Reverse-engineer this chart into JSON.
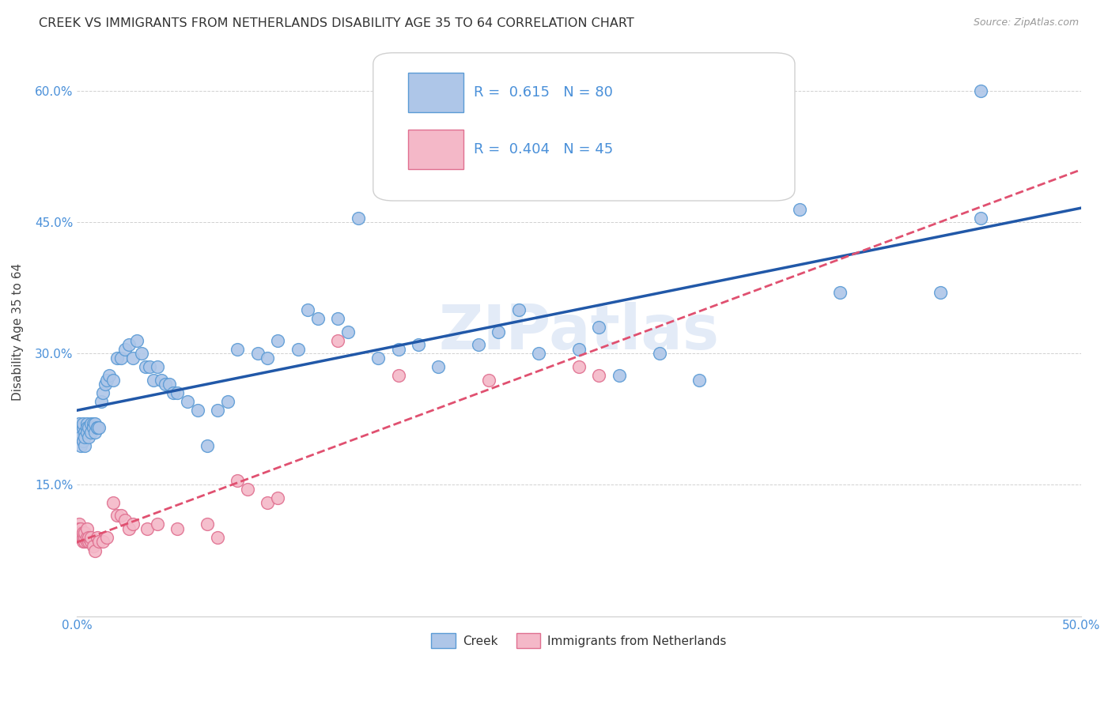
{
  "title": "CREEK VS IMMIGRANTS FROM NETHERLANDS DISABILITY AGE 35 TO 64 CORRELATION CHART",
  "source": "Source: ZipAtlas.com",
  "ylabel": "Disability Age 35 to 64",
  "xlim": [
    0.0,
    0.5
  ],
  "ylim": [
    0.0,
    0.65
  ],
  "xticks": [
    0.0,
    0.1,
    0.2,
    0.3,
    0.4,
    0.5
  ],
  "xticklabels": [
    "0.0%",
    "",
    "",
    "",
    "",
    "50.0%"
  ],
  "yticks": [
    0.15,
    0.3,
    0.45,
    0.6
  ],
  "yticklabels": [
    "15.0%",
    "30.0%",
    "45.0%",
    "60.0%"
  ],
  "creek_color": "#aec6e8",
  "creek_edge_color": "#5b9bd5",
  "netherlands_color": "#f4b8c8",
  "netherlands_edge_color": "#e07090",
  "creek_line_color": "#2158a8",
  "netherlands_line_color": "#e05070",
  "R_creek": 0.615,
  "N_creek": 80,
  "R_netherlands": 0.404,
  "N_netherlands": 45,
  "watermark": "ZIPatlas",
  "creek_x": [
    0.001,
    0.001,
    0.002,
    0.002,
    0.002,
    0.003,
    0.003,
    0.003,
    0.004,
    0.004,
    0.004,
    0.005,
    0.005,
    0.005,
    0.006,
    0.006,
    0.007,
    0.007,
    0.008,
    0.008,
    0.009,
    0.009,
    0.01,
    0.01,
    0.011,
    0.012,
    0.013,
    0.014,
    0.015,
    0.016,
    0.018,
    0.02,
    0.022,
    0.024,
    0.026,
    0.028,
    0.03,
    0.032,
    0.034,
    0.036,
    0.038,
    0.04,
    0.042,
    0.044,
    0.046,
    0.048,
    0.05,
    0.055,
    0.06,
    0.065,
    0.07,
    0.075,
    0.08,
    0.09,
    0.095,
    0.1,
    0.11,
    0.115,
    0.12,
    0.13,
    0.135,
    0.14,
    0.15,
    0.16,
    0.17,
    0.18,
    0.2,
    0.21,
    0.22,
    0.23,
    0.25,
    0.26,
    0.27,
    0.29,
    0.31,
    0.36,
    0.38,
    0.43,
    0.45,
    0.45
  ],
  "creek_y": [
    0.215,
    0.22,
    0.195,
    0.21,
    0.205,
    0.2,
    0.215,
    0.22,
    0.195,
    0.21,
    0.205,
    0.22,
    0.215,
    0.21,
    0.205,
    0.215,
    0.22,
    0.21,
    0.22,
    0.215,
    0.21,
    0.22,
    0.215,
    0.215,
    0.215,
    0.245,
    0.255,
    0.265,
    0.27,
    0.275,
    0.27,
    0.295,
    0.295,
    0.305,
    0.31,
    0.295,
    0.315,
    0.3,
    0.285,
    0.285,
    0.27,
    0.285,
    0.27,
    0.265,
    0.265,
    0.255,
    0.255,
    0.245,
    0.235,
    0.195,
    0.235,
    0.245,
    0.305,
    0.3,
    0.295,
    0.315,
    0.305,
    0.35,
    0.34,
    0.34,
    0.325,
    0.455,
    0.295,
    0.305,
    0.31,
    0.285,
    0.31,
    0.325,
    0.35,
    0.3,
    0.305,
    0.33,
    0.275,
    0.3,
    0.27,
    0.465,
    0.37,
    0.37,
    0.455,
    0.6
  ],
  "netherlands_x": [
    0.001,
    0.001,
    0.001,
    0.002,
    0.002,
    0.002,
    0.003,
    0.003,
    0.003,
    0.004,
    0.004,
    0.004,
    0.005,
    0.005,
    0.005,
    0.006,
    0.006,
    0.007,
    0.007,
    0.008,
    0.009,
    0.01,
    0.011,
    0.013,
    0.015,
    0.018,
    0.02,
    0.022,
    0.024,
    0.026,
    0.028,
    0.035,
    0.04,
    0.05,
    0.065,
    0.07,
    0.08,
    0.085,
    0.095,
    0.1,
    0.13,
    0.16,
    0.205,
    0.25,
    0.26
  ],
  "netherlands_y": [
    0.105,
    0.1,
    0.095,
    0.09,
    0.095,
    0.1,
    0.085,
    0.09,
    0.095,
    0.085,
    0.09,
    0.095,
    0.085,
    0.09,
    0.1,
    0.085,
    0.09,
    0.085,
    0.09,
    0.08,
    0.075,
    0.09,
    0.085,
    0.085,
    0.09,
    0.13,
    0.115,
    0.115,
    0.11,
    0.1,
    0.105,
    0.1,
    0.105,
    0.1,
    0.105,
    0.09,
    0.155,
    0.145,
    0.13,
    0.135,
    0.315,
    0.275,
    0.27,
    0.285,
    0.275
  ]
}
